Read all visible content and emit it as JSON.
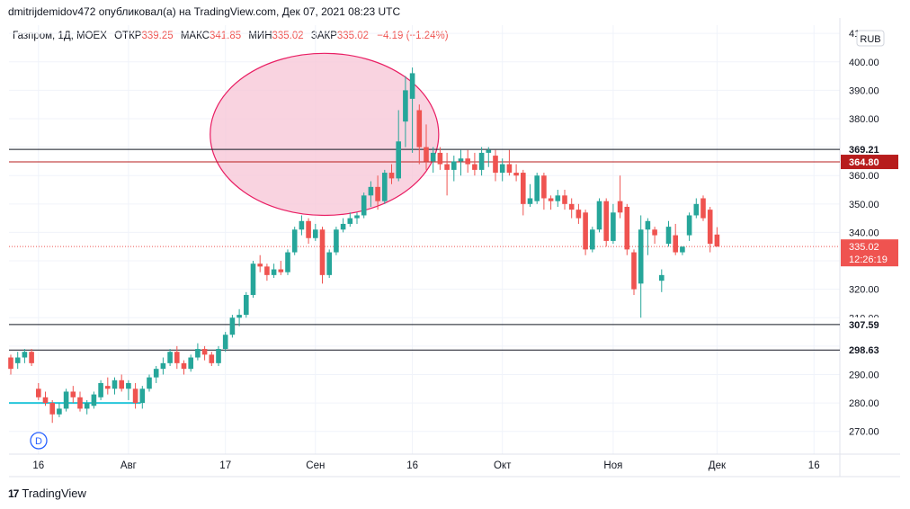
{
  "header": {
    "publisher_line": "dmitrijdemidov472 опубликовал(а) на TradingView.com, Дек 07, 2021 08:23 UTC"
  },
  "legend": {
    "symbol": "Газпром, 1Д, MOEX",
    "open_label": "ОТКР",
    "open_value": "339.25",
    "high_label": "МАКС",
    "high_value": "341.85",
    "low_label": "МИН",
    "low_value": "335.02",
    "close_label": "ЗАКР",
    "close_value": "335.02",
    "change": "−4.19 (−1.24%)"
  },
  "currency_badge": "RUB",
  "interval_badge": "D",
  "footer": {
    "brand": "TradingView",
    "logo_glyph": "17"
  },
  "colors": {
    "up": "#26a69a",
    "down": "#ef5350",
    "ellipse_fill": "#f8c8d8",
    "ellipse_stroke": "#e91e63",
    "support_line": "#26c6da"
  },
  "chart_data": {
    "type": "candlestick",
    "title": "",
    "ylim": [
      262,
      411
    ],
    "y_ticks": [
      "410.00",
      "400.00",
      "390.00",
      "380.00",
      "370.00",
      "360.00",
      "350.00",
      "340.00",
      "330.00",
      "320.00",
      "310.00",
      "300.00",
      "290.00",
      "280.00",
      "270.00"
    ],
    "x_ticks": [
      "16",
      "Авг",
      "17",
      "Сен",
      "16",
      "Окт",
      "Ноя",
      "Дек",
      "16"
    ],
    "x_tick_days": [
      4,
      17,
      31,
      44,
      58,
      71,
      87,
      102,
      116
    ],
    "horizontal_lines": [
      {
        "price": 369.21,
        "label": "369.21",
        "color": "#131722"
      },
      {
        "price": 364.8,
        "label": "364.80",
        "color": "#b71c1c"
      },
      {
        "price": 307.59,
        "label": "307.59",
        "color": "#131722"
      },
      {
        "price": 298.63,
        "label": "298.63",
        "color": "#131722"
      }
    ],
    "last_price": {
      "price": 335.02,
      "label": "335.02",
      "timer": "12:26:19"
    },
    "support_segment": {
      "price": 280,
      "from_day": 0,
      "to_day": 18
    },
    "highlight_ellipse": {
      "from_day": 28.8,
      "to_day": 61.8,
      "price_low": 346,
      "price_high": 403
    },
    "candles": [
      {
        "d": 0,
        "o": 296,
        "h": 297,
        "l": 290,
        "c": 292
      },
      {
        "d": 1,
        "o": 294,
        "h": 298,
        "l": 292,
        "c": 296
      },
      {
        "d": 2,
        "o": 296,
        "h": 299,
        "l": 294,
        "c": 298
      },
      {
        "d": 3,
        "o": 298,
        "h": 299,
        "l": 293,
        "c": 294
      },
      {
        "d": 4,
        "o": 285,
        "h": 287,
        "l": 281,
        "c": 282
      },
      {
        "d": 5,
        "o": 282,
        "h": 284,
        "l": 279,
        "c": 280
      },
      {
        "d": 6,
        "o": 280,
        "h": 281,
        "l": 273,
        "c": 276
      },
      {
        "d": 7,
        "o": 276,
        "h": 280,
        "l": 275,
        "c": 278
      },
      {
        "d": 8,
        "o": 278,
        "h": 285,
        "l": 277,
        "c": 284
      },
      {
        "d": 9,
        "o": 284,
        "h": 286,
        "l": 280,
        "c": 282
      },
      {
        "d": 10,
        "o": 282,
        "h": 284,
        "l": 277,
        "c": 278
      },
      {
        "d": 11,
        "o": 278,
        "h": 281,
        "l": 276,
        "c": 280
      },
      {
        "d": 12,
        "o": 279,
        "h": 284,
        "l": 278,
        "c": 283
      },
      {
        "d": 13,
        "o": 282,
        "h": 288,
        "l": 281,
        "c": 287
      },
      {
        "d": 14,
        "o": 286,
        "h": 289,
        "l": 283,
        "c": 285
      },
      {
        "d": 15,
        "o": 285,
        "h": 289,
        "l": 283,
        "c": 288
      },
      {
        "d": 16,
        "o": 288,
        "h": 290,
        "l": 284,
        "c": 285
      },
      {
        "d": 17,
        "o": 285,
        "h": 288,
        "l": 281,
        "c": 287
      },
      {
        "d": 18,
        "o": 285,
        "h": 287,
        "l": 278,
        "c": 280
      },
      {
        "d": 19,
        "o": 280,
        "h": 286,
        "l": 278,
        "c": 285
      },
      {
        "d": 20,
        "o": 285,
        "h": 290,
        "l": 284,
        "c": 289
      },
      {
        "d": 21,
        "o": 289,
        "h": 293,
        "l": 287,
        "c": 292
      },
      {
        "d": 22,
        "o": 292,
        "h": 296,
        "l": 290,
        "c": 294
      },
      {
        "d": 23,
        "o": 294,
        "h": 299,
        "l": 293,
        "c": 298
      },
      {
        "d": 24,
        "o": 298,
        "h": 300,
        "l": 292,
        "c": 294
      },
      {
        "d": 25,
        "o": 294,
        "h": 295,
        "l": 290,
        "c": 292
      },
      {
        "d": 26,
        "o": 292,
        "h": 297,
        "l": 291,
        "c": 296
      },
      {
        "d": 27,
        "o": 296,
        "h": 301,
        "l": 295,
        "c": 299
      },
      {
        "d": 28,
        "o": 299,
        "h": 300,
        "l": 295,
        "c": 297
      },
      {
        "d": 29,
        "o": 297,
        "h": 298,
        "l": 293,
        "c": 294
      },
      {
        "d": 30,
        "o": 294,
        "h": 300,
        "l": 293,
        "c": 299
      },
      {
        "d": 31,
        "o": 299,
        "h": 305,
        "l": 298,
        "c": 304
      },
      {
        "d": 32,
        "o": 304,
        "h": 311,
        "l": 303,
        "c": 310
      },
      {
        "d": 33,
        "o": 310,
        "h": 313,
        "l": 307,
        "c": 311
      },
      {
        "d": 34,
        "o": 311,
        "h": 319,
        "l": 310,
        "c": 318
      },
      {
        "d": 35,
        "o": 318,
        "h": 330,
        "l": 317,
        "c": 329
      },
      {
        "d": 36,
        "o": 329,
        "h": 332,
        "l": 326,
        "c": 328
      },
      {
        "d": 37,
        "o": 328,
        "h": 329,
        "l": 323,
        "c": 325
      },
      {
        "d": 38,
        "o": 325,
        "h": 329,
        "l": 324,
        "c": 327
      },
      {
        "d": 39,
        "o": 327,
        "h": 330,
        "l": 325,
        "c": 326
      },
      {
        "d": 40,
        "o": 326,
        "h": 334,
        "l": 325,
        "c": 333
      },
      {
        "d": 41,
        "o": 333,
        "h": 342,
        "l": 332,
        "c": 341
      },
      {
        "d": 42,
        "o": 341,
        "h": 346,
        "l": 339,
        "c": 344
      },
      {
        "d": 43,
        "o": 344,
        "h": 345,
        "l": 336,
        "c": 338
      },
      {
        "d": 44,
        "o": 338,
        "h": 343,
        "l": 337,
        "c": 341
      },
      {
        "d": 45,
        "o": 341,
        "h": 342,
        "l": 322,
        "c": 325
      },
      {
        "d": 46,
        "o": 325,
        "h": 334,
        "l": 324,
        "c": 333
      },
      {
        "d": 47,
        "o": 333,
        "h": 342,
        "l": 332,
        "c": 341
      },
      {
        "d": 48,
        "o": 341,
        "h": 345,
        "l": 340,
        "c": 343
      },
      {
        "d": 49,
        "o": 343,
        "h": 347,
        "l": 342,
        "c": 345
      },
      {
        "d": 50,
        "o": 345,
        "h": 347,
        "l": 343,
        "c": 346
      },
      {
        "d": 51,
        "o": 346,
        "h": 354,
        "l": 345,
        "c": 353
      },
      {
        "d": 52,
        "o": 353,
        "h": 358,
        "l": 349,
        "c": 356
      },
      {
        "d": 53,
        "o": 356,
        "h": 360,
        "l": 348,
        "c": 351
      },
      {
        "d": 54,
        "o": 351,
        "h": 362,
        "l": 350,
        "c": 361
      },
      {
        "d": 55,
        "o": 361,
        "h": 364,
        "l": 357,
        "c": 359
      },
      {
        "d": 56,
        "o": 359,
        "h": 383,
        "l": 358,
        "c": 372
      },
      {
        "d": 57,
        "o": 379,
        "h": 395,
        "l": 370,
        "c": 390
      },
      {
        "d": 58,
        "o": 387,
        "h": 398,
        "l": 368,
        "c": 396
      },
      {
        "d": 59,
        "o": 383,
        "h": 385,
        "l": 364,
        "c": 370
      },
      {
        "d": 60,
        "o": 370,
        "h": 378,
        "l": 362,
        "c": 365
      },
      {
        "d": 61,
        "o": 365,
        "h": 370,
        "l": 361,
        "c": 368
      },
      {
        "d": 62,
        "o": 368,
        "h": 370,
        "l": 362,
        "c": 364
      },
      {
        "d": 63,
        "o": 364,
        "h": 368,
        "l": 353,
        "c": 362
      },
      {
        "d": 64,
        "o": 362,
        "h": 367,
        "l": 358,
        "c": 365
      },
      {
        "d": 65,
        "o": 365,
        "h": 369,
        "l": 360,
        "c": 366
      },
      {
        "d": 66,
        "o": 366,
        "h": 369,
        "l": 361,
        "c": 364
      },
      {
        "d": 67,
        "o": 364,
        "h": 368,
        "l": 360,
        "c": 362
      },
      {
        "d": 68,
        "o": 362,
        "h": 370,
        "l": 360,
        "c": 368
      },
      {
        "d": 69,
        "o": 368,
        "h": 370,
        "l": 363,
        "c": 369
      },
      {
        "d": 70,
        "o": 367,
        "h": 369,
        "l": 358,
        "c": 361
      },
      {
        "d": 71,
        "o": 361,
        "h": 366,
        "l": 358,
        "c": 364
      },
      {
        "d": 72,
        "o": 364,
        "h": 369,
        "l": 360,
        "c": 361
      },
      {
        "d": 73,
        "o": 361,
        "h": 364,
        "l": 358,
        "c": 360
      },
      {
        "d": 74,
        "o": 361,
        "h": 362,
        "l": 346,
        "c": 350
      },
      {
        "d": 75,
        "o": 350,
        "h": 357,
        "l": 349,
        "c": 352
      },
      {
        "d": 76,
        "o": 351,
        "h": 361,
        "l": 350,
        "c": 360
      },
      {
        "d": 77,
        "o": 360,
        "h": 361,
        "l": 348,
        "c": 352
      },
      {
        "d": 78,
        "o": 352,
        "h": 353,
        "l": 348,
        "c": 351
      },
      {
        "d": 79,
        "o": 351,
        "h": 355,
        "l": 349,
        "c": 353
      },
      {
        "d": 80,
        "o": 353,
        "h": 355,
        "l": 348,
        "c": 350
      },
      {
        "d": 81,
        "o": 350,
        "h": 352,
        "l": 345,
        "c": 348
      },
      {
        "d": 82,
        "o": 348,
        "h": 350,
        "l": 343,
        "c": 345
      },
      {
        "d": 83,
        "o": 347,
        "h": 348,
        "l": 332,
        "c": 334
      },
      {
        "d": 84,
        "o": 334,
        "h": 342,
        "l": 333,
        "c": 341
      },
      {
        "d": 85,
        "o": 341,
        "h": 352,
        "l": 340,
        "c": 351
      },
      {
        "d": 86,
        "o": 351,
        "h": 352,
        "l": 335,
        "c": 337
      },
      {
        "d": 87,
        "o": 337,
        "h": 350,
        "l": 336,
        "c": 347
      },
      {
        "d": 88,
        "o": 351,
        "h": 360,
        "l": 345,
        "c": 347
      },
      {
        "d": 89,
        "o": 349,
        "h": 350,
        "l": 332,
        "c": 334
      },
      {
        "d": 90,
        "o": 333,
        "h": 334,
        "l": 318,
        "c": 320
      },
      {
        "d": 91,
        "o": 322,
        "h": 346,
        "l": 310,
        "c": 341
      },
      {
        "d": 92,
        "o": 341,
        "h": 345,
        "l": 332,
        "c": 344
      },
      {
        "d": 93,
        "o": 341,
        "h": 342,
        "l": 336,
        "c": 339
      },
      {
        "d": 94,
        "o": 323,
        "h": 327,
        "l": 319,
        "c": 325
      },
      {
        "d": 95,
        "o": 336,
        "h": 344,
        "l": 335,
        "c": 342
      },
      {
        "d": 96,
        "o": 339,
        "h": 343,
        "l": 332,
        "c": 333
      },
      {
        "d": 97,
        "o": 333,
        "h": 335,
        "l": 332,
        "c": 335
      },
      {
        "d": 98,
        "o": 339,
        "h": 347,
        "l": 337,
        "c": 346
      },
      {
        "d": 99,
        "o": 346,
        "h": 352,
        "l": 345,
        "c": 350
      },
      {
        "d": 100,
        "o": 352,
        "h": 353,
        "l": 344,
        "c": 345
      },
      {
        "d": 101,
        "o": 348,
        "h": 349,
        "l": 333,
        "c": 336
      },
      {
        "d": 102,
        "o": 339.25,
        "h": 341.85,
        "l": 335.02,
        "c": 335.02
      }
    ]
  }
}
